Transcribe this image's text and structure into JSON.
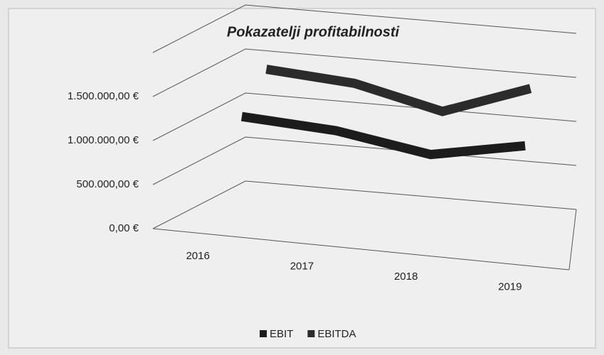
{
  "chart_data": {
    "type": "line3d",
    "title": "Pokazatelji profitabilnosti",
    "categories": [
      "2016",
      "2017",
      "2018",
      "2019"
    ],
    "series": [
      {
        "name": "EBIT",
        "color": "#1c1c1c",
        "values": [
          1080000,
          1020000,
          850000,
          1050000
        ]
      },
      {
        "name": "EBITDA",
        "color": "#2b2b2b",
        "values": [
          1450000,
          1380000,
          1150000,
          1500000
        ]
      }
    ],
    "ylim": [
      0,
      2000000
    ],
    "yticks": [
      {
        "value": 0,
        "label": "0,00 €"
      },
      {
        "value": 500000,
        "label": "500.000,00 €"
      },
      {
        "value": 1000000,
        "label": "1.000.000,00 €"
      },
      {
        "value": 1500000,
        "label": "1.500.000,00 €"
      }
    ],
    "grid": true,
    "legend": "bottom"
  }
}
